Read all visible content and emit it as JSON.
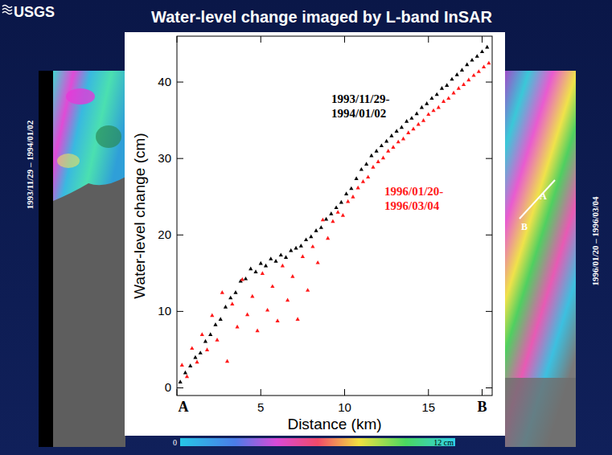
{
  "slide": {
    "logo": "USGS",
    "title": "Water-level change imaged by L-band InSAR",
    "left_label": "1993/11/29 – 1994/01/02",
    "right_label": "1996/01/20 – 1996/03/04",
    "map_labels": [
      "A",
      "B"
    ],
    "colorbar": {
      "range": [
        0,
        12
      ],
      "ticks": [
        {
          "value": 0,
          "label": "0"
        },
        {
          "value": 12,
          "label": "12 cm"
        }
      ]
    }
  },
  "chart_data": {
    "type": "scatter",
    "x_label": "Distance (km)",
    "y_label": "Water-level change (cm)",
    "xlim": [
      0,
      18.8
    ],
    "ylim": [
      -1,
      46
    ],
    "xticks": [
      {
        "value": 0,
        "label": "A"
      },
      5,
      10,
      15,
      {
        "value": 18.2,
        "label": "B"
      }
    ],
    "yticks": [
      0,
      10,
      20,
      30,
      40
    ],
    "grid": false,
    "series": [
      {
        "name": "1993/11/29-1994/01/02",
        "color": "#000000",
        "marker": "triangle",
        "x": [
          0.2,
          0.5,
          0.8,
          1.1,
          1.4,
          1.7,
          2.0,
          2.3,
          2.6,
          2.9,
          3.2,
          3.5,
          3.8,
          4.1,
          4.4,
          4.7,
          5.0,
          5.3,
          5.6,
          5.9,
          6.2,
          6.5,
          6.8,
          7.1,
          7.4,
          7.7,
          8.0,
          8.3,
          8.6,
          8.9,
          9.2,
          9.5,
          9.8,
          10.1,
          10.4,
          10.7,
          11.0,
          11.3,
          11.6,
          11.9,
          12.2,
          12.5,
          12.8,
          13.1,
          13.4,
          13.7,
          14.0,
          14.3,
          14.6,
          14.9,
          15.2,
          15.5,
          15.8,
          16.1,
          16.4,
          16.7,
          17.0,
          17.3,
          17.6,
          17.9,
          18.2,
          18.5
        ],
        "values": [
          0.8,
          2.0,
          2.9,
          4.0,
          4.6,
          6.1,
          7.0,
          8.3,
          9.0,
          10.6,
          11.8,
          12.5,
          14.0,
          14.3,
          15.6,
          15.2,
          16.3,
          16.0,
          16.9,
          16.6,
          17.4,
          17.1,
          18.0,
          18.3,
          18.6,
          19.4,
          19.8,
          20.6,
          21.0,
          22.1,
          22.8,
          23.6,
          24.3,
          25.4,
          26.1,
          27.4,
          28.6,
          29.3,
          30.4,
          31.0,
          31.7,
          32.3,
          33.0,
          33.6,
          34.1,
          34.9,
          35.3,
          35.9,
          36.7,
          37.2,
          37.9,
          38.4,
          39.2,
          39.6,
          40.4,
          41.0,
          41.6,
          42.3,
          42.9,
          43.4,
          44.0,
          44.6
        ]
      },
      {
        "name": "1996/01/20-1996/03/04",
        "color": "#ff1a1a",
        "marker": "triangle",
        "x": [
          0.3,
          0.6,
          0.9,
          1.2,
          1.5,
          1.8,
          2.1,
          2.4,
          2.7,
          3.0,
          3.3,
          3.6,
          3.9,
          4.2,
          4.5,
          4.8,
          5.1,
          5.4,
          5.7,
          6.0,
          6.3,
          6.6,
          6.9,
          7.2,
          7.5,
          7.8,
          8.1,
          8.4,
          8.7,
          9.0,
          9.3,
          9.6,
          9.9,
          10.2,
          10.5,
          10.8,
          11.1,
          11.4,
          11.7,
          12.0,
          12.3,
          12.6,
          12.9,
          13.2,
          13.5,
          13.8,
          14.1,
          14.4,
          14.7,
          15.0,
          15.3,
          15.6,
          15.9,
          16.2,
          16.5,
          16.8,
          17.1,
          17.4,
          17.7,
          18.0,
          18.3,
          18.6
        ],
        "values": [
          3.0,
          1.5,
          5.2,
          3.4,
          7.0,
          5.0,
          9.5,
          6.3,
          12.5,
          3.5,
          11.0,
          8.0,
          14.2,
          9.6,
          12.0,
          7.5,
          15.0,
          10.2,
          13.3,
          8.8,
          16.0,
          11.5,
          14.6,
          9.0,
          17.2,
          12.8,
          18.5,
          16.4,
          22.0,
          19.6,
          21.8,
          23.0,
          22.6,
          24.4,
          25.0,
          26.2,
          27.0,
          27.6,
          28.9,
          29.6,
          30.1,
          31.0,
          31.5,
          32.2,
          32.6,
          33.4,
          33.9,
          34.5,
          35.0,
          35.8,
          36.3,
          36.7,
          37.5,
          37.9,
          38.6,
          39.2,
          39.7,
          40.3,
          40.9,
          41.4,
          42.0,
          42.5
        ]
      }
    ]
  }
}
